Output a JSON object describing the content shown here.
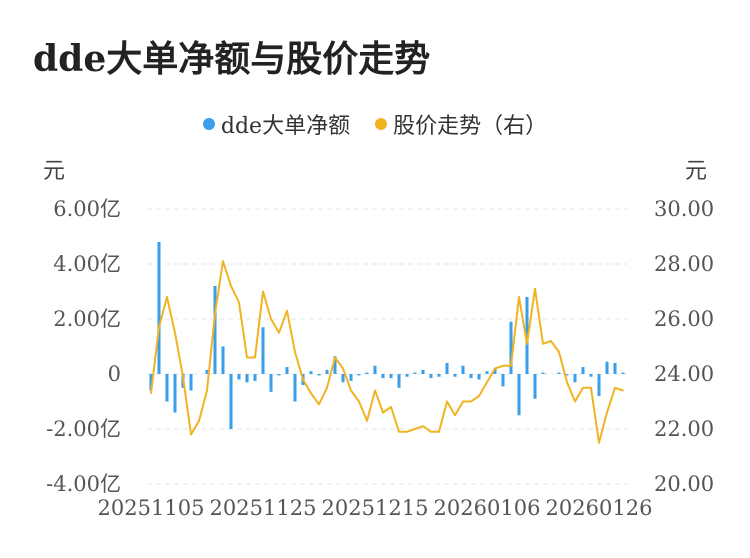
{
  "title": "dde大单净额与股价走势",
  "chart_data": {
    "type": "bar",
    "title": "dde大单净额与股价走势",
    "legend_position": "top-center",
    "grid": true,
    "y_left": {
      "unit": "元",
      "min": -4,
      "max": 6,
      "ticks": [
        -4,
        -2,
        0,
        2,
        4,
        6
      ],
      "tick_labels": [
        "-4.00亿",
        "-2.00亿",
        "0",
        "2.00亿",
        "4.00亿",
        "6.00亿"
      ]
    },
    "y_right": {
      "unit": "元",
      "min": 20,
      "max": 30,
      "ticks": [
        20,
        22,
        24,
        26,
        28,
        30
      ],
      "tick_labels": [
        "20.00",
        "22.00",
        "24.00",
        "26.00",
        "28.00",
        "30.00"
      ]
    },
    "x_tick_labels": [
      {
        "label": "20251105",
        "index": 0
      },
      {
        "label": "20251125",
        "index": 14
      },
      {
        "label": "20251215",
        "index": 28
      },
      {
        "label": "20260106",
        "index": 42
      },
      {
        "label": "20260126",
        "index": 56
      }
    ],
    "series": [
      {
        "name": "dde大单净额",
        "type": "bar",
        "axis": "left",
        "color": "#3a9ee8",
        "values": [
          -0.6,
          4.8,
          -1.0,
          -1.4,
          -0.5,
          -0.6,
          0.0,
          0.15,
          3.2,
          1.0,
          -2.0,
          -0.2,
          -0.3,
          -0.25,
          1.7,
          -0.65,
          -0.05,
          0.25,
          -1.0,
          -0.4,
          0.1,
          -0.05,
          0.15,
          0.65,
          -0.3,
          -0.25,
          -0.05,
          0.05,
          0.3,
          -0.15,
          -0.15,
          -0.5,
          -0.1,
          0.05,
          0.15,
          -0.15,
          -0.1,
          0.4,
          -0.1,
          0.3,
          -0.15,
          -0.2,
          0.1,
          0.2,
          -0.45,
          1.9,
          -1.5,
          2.8,
          -0.9,
          0.05,
          0.0,
          0.05,
          -0.05,
          -0.3,
          0.25,
          -0.1,
          -0.8,
          0.45,
          0.4,
          0.05
        ]
      },
      {
        "name": "股价走势（右）",
        "type": "line",
        "axis": "right",
        "color": "#f0b322",
        "values": [
          23.3,
          25.7,
          26.8,
          25.5,
          23.9,
          21.8,
          22.3,
          23.4,
          26.2,
          28.1,
          27.2,
          26.6,
          24.6,
          24.6,
          27.0,
          26.0,
          25.5,
          26.3,
          24.8,
          23.8,
          23.3,
          22.9,
          23.5,
          24.6,
          24.2,
          23.4,
          23.0,
          22.3,
          23.4,
          22.6,
          22.8,
          21.9,
          21.9,
          22.0,
          22.1,
          21.9,
          21.9,
          23.0,
          22.5,
          23.0,
          23.0,
          23.2,
          23.7,
          24.2,
          24.3,
          24.3,
          26.8,
          25.1,
          27.1,
          25.1,
          25.2,
          24.8,
          23.7,
          23.0,
          23.5,
          23.5,
          21.5,
          22.6,
          23.5,
          23.4
        ]
      }
    ]
  }
}
